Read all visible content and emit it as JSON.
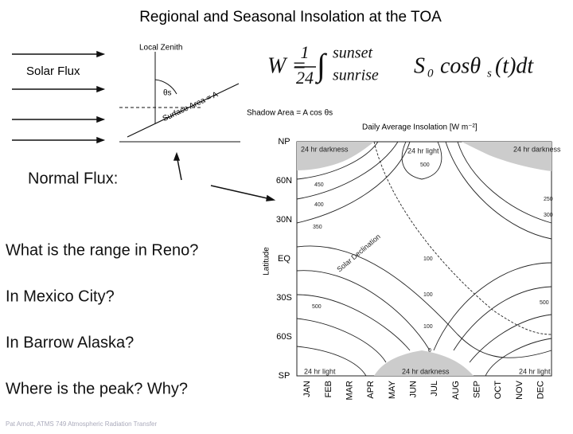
{
  "title": "Regional and Seasonal Insolation at the TOA",
  "diagram": {
    "solar_flux": "Solar Flux",
    "zenith": "Local Zenith",
    "angle": "θs",
    "surface": "Surface Area = A",
    "shadow": "Shadow Area = A cos θs"
  },
  "equation": {
    "lhs": "W =",
    "numerator": "1",
    "denominator": "24",
    "integral": "∫",
    "upper": "sunset",
    "lower": "sunrise",
    "s": "S",
    "s_sub": "0",
    "cos": "cosθ",
    "cos_sub": "s",
    "tail": "(t)dt"
  },
  "questions": [
    "Normal Flux:",
    "What is the range in Reno?",
    "In Mexico City?",
    "In Barrow Alaska?",
    "Where is the peak? Why?"
  ],
  "footer": "Pat Arnott, ATMS 749 Atmospheric Radiation Transfer",
  "figure": {
    "title": "Daily Average Insolation [W m⁻²]",
    "y_label": "Latitude",
    "latitudes": [
      "NP",
      "60N",
      "30N",
      "EQ",
      "30S",
      "60S",
      "SP"
    ],
    "months": [
      "JAN",
      "FEB",
      "MAR",
      "APR",
      "MAY",
      "JUN",
      "JUL",
      "AUG",
      "SEP",
      "OCT",
      "NOV",
      "DEC"
    ],
    "annotations": [
      "24 hr darkness",
      "24 hr light",
      "24 hr darkness",
      "24 hr light",
      "24 hr darkness",
      "24 hr light",
      "Solar Declination"
    ],
    "contour_labels": [
      "500",
      "450",
      "400",
      "350",
      "300",
      "250",
      "100",
      "100",
      "100",
      "0",
      "500",
      "500"
    ]
  }
}
